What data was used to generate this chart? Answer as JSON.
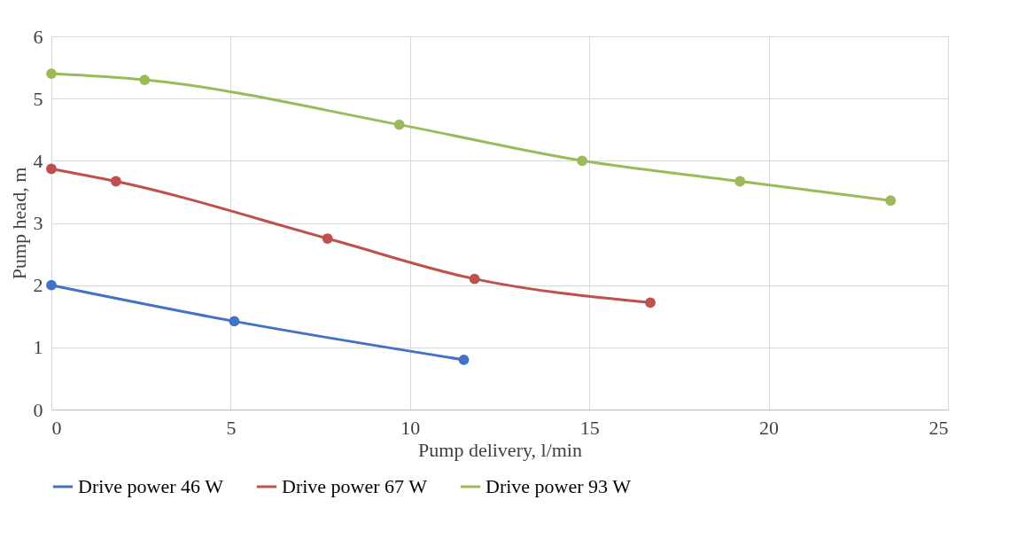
{
  "chart_data": {
    "type": "line",
    "xlabel": "Pump delivery, l/min",
    "ylabel": "Pump head, m",
    "xlim": [
      0,
      25
    ],
    "xticks": [
      0,
      5,
      10,
      15,
      20,
      25
    ],
    "ylim": [
      0,
      6
    ],
    "yticks": [
      0,
      1,
      2,
      3,
      4,
      5,
      6
    ],
    "grid": true,
    "legend": "bottom",
    "marker": "circle",
    "line_style": "solid",
    "series": [
      {
        "name": "Drive power 46 W",
        "color": "#4472c4",
        "x": [
          0,
          5.1,
          11.5
        ],
        "values": [
          2.0,
          1.42,
          0.8
        ]
      },
      {
        "name": "Drive power 67 W",
        "color": "#c0504d",
        "x": [
          0,
          1.8,
          7.7,
          11.8,
          16.7
        ],
        "values": [
          3.87,
          3.67,
          2.75,
          2.1,
          1.72
        ]
      },
      {
        "name": "Drive power 93 W",
        "color": "#9bbb59",
        "x": [
          0,
          2.6,
          9.7,
          14.8,
          19.2,
          23.4
        ],
        "values": [
          5.4,
          5.3,
          4.58,
          4.0,
          3.67,
          3.36
        ]
      }
    ]
  }
}
